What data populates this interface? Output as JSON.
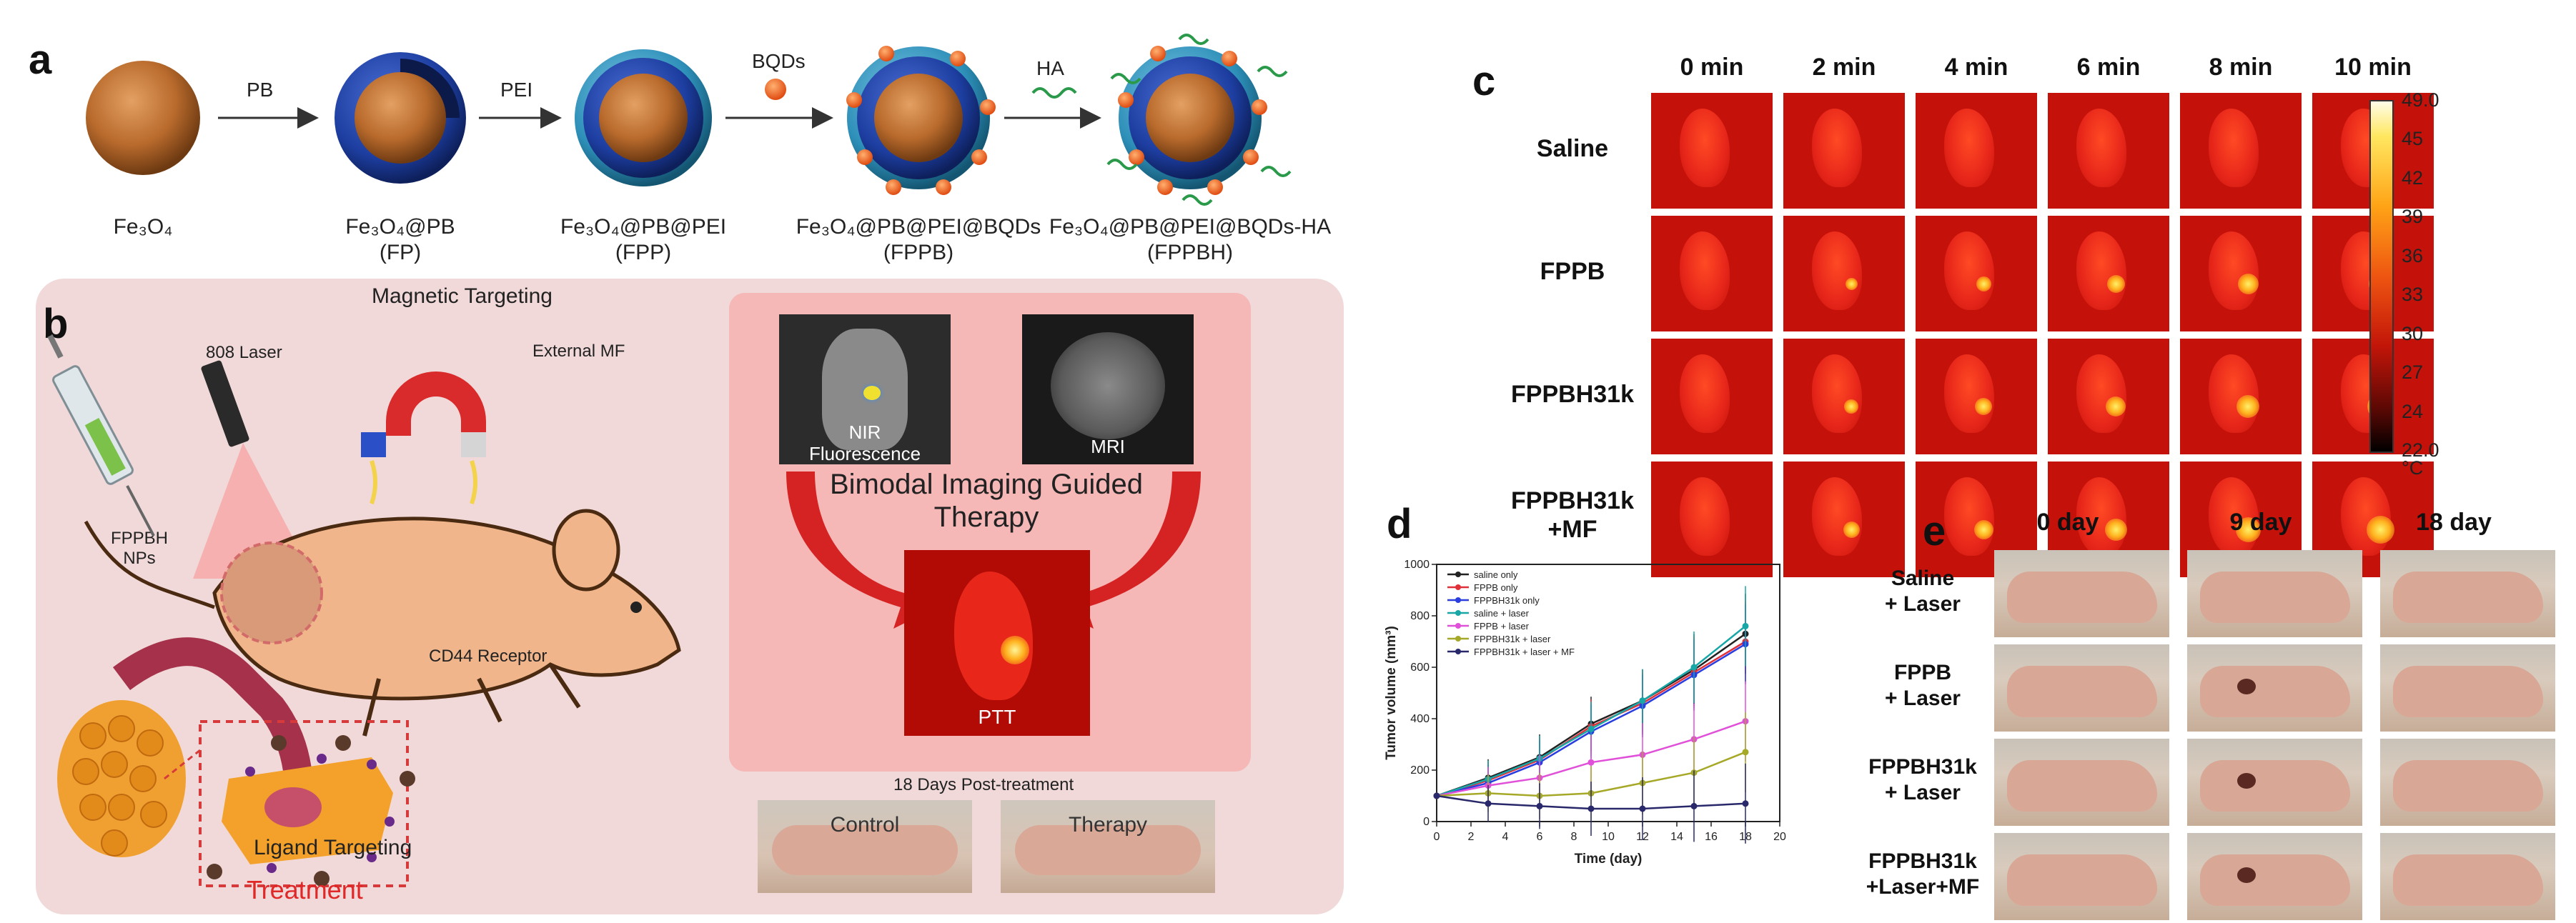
{
  "panel_a": {
    "label": "a",
    "steps": [
      {
        "formula": "Fe₃O₄",
        "abbrev": ""
      },
      {
        "formula": "Fe₃O₄@PB",
        "abbrev": "(FP)"
      },
      {
        "formula": "Fe₃O₄@PB@PEI",
        "abbrev": "(FPP)"
      },
      {
        "formula": "Fe₃O₄@PB@PEI@BQDs",
        "abbrev": "(FPPB)"
      },
      {
        "formula": "Fe₃O₄@PB@PEI@BQDs-HA",
        "abbrev": "(FPPBH)"
      }
    ],
    "arrows": [
      "PB",
      "PEI",
      "BQDs",
      "HA"
    ]
  },
  "panel_b": {
    "label": "b",
    "magnetic_targeting": "Magnetic Targeting",
    "laser": "808 Laser",
    "external_mf": "External MF",
    "nps": "FPPBH\nNPs",
    "nir": "NIR\nFluorescence",
    "mri": "MRI",
    "bimodal": "Bimodal Imaging Guided\nTherapy",
    "ptt": "PTT",
    "cd44": "CD44 Receptor",
    "ligand": "Ligand Targeting",
    "treatment": "Treatment",
    "post": "18 Days Post-treatment",
    "control": "Control",
    "therapy": "Therapy"
  },
  "panel_c": {
    "label": "c",
    "columns": [
      "0 min",
      "2 min",
      "4 min",
      "6 min",
      "8 min",
      "10 min"
    ],
    "rows": [
      "Saline",
      "FPPB",
      "FPPBH31k",
      "FPPBH31k\n+MF"
    ],
    "colorbar_ticks": [
      "49.0",
      "45",
      "42",
      "39",
      "36",
      "33",
      "30",
      "27",
      "24",
      "22.0"
    ],
    "colorbar_unit": "°C",
    "colors": {
      "cold": "#000000",
      "mid": "#e01a0a",
      "hot": "#fff7a0"
    }
  },
  "panel_d": {
    "label": "d",
    "chart_data": {
      "type": "line",
      "xlabel": "Time (day)",
      "ylabel": "Tumor volume (mm³)",
      "xlim": [
        0,
        20
      ],
      "ylim": [
        0,
        1000
      ],
      "xticks": [
        "0",
        "2",
        "4",
        "6",
        "8",
        "10",
        "12",
        "14",
        "16",
        "18",
        "20"
      ],
      "yticks": [
        "0",
        "200",
        "400",
        "600",
        "800",
        "1000"
      ],
      "x": [
        0,
        3,
        6,
        9,
        12,
        15,
        18
      ],
      "legend_position": "top-left",
      "series": [
        {
          "name": "saline only",
          "color": "#222222",
          "values": [
            100,
            170,
            250,
            380,
            470,
            590,
            730
          ]
        },
        {
          "name": "FPPB only",
          "color": "#e0303a",
          "values": [
            100,
            160,
            240,
            370,
            460,
            580,
            700
          ]
        },
        {
          "name": "FPPBH31k only",
          "color": "#2a3ee0",
          "values": [
            100,
            150,
            230,
            350,
            450,
            570,
            690
          ]
        },
        {
          "name": "saline + laser",
          "color": "#18a6a6",
          "values": [
            100,
            165,
            245,
            360,
            470,
            600,
            760
          ]
        },
        {
          "name": "FPPB + laser",
          "color": "#e050d8",
          "values": [
            100,
            140,
            170,
            230,
            260,
            320,
            390
          ]
        },
        {
          "name": "FPPBH31k + laser",
          "color": "#a6a828",
          "values": [
            100,
            110,
            100,
            110,
            150,
            190,
            270
          ]
        },
        {
          "name": "FPPBH31k + laser + MF",
          "color": "#28286a",
          "values": [
            100,
            70,
            60,
            50,
            50,
            60,
            70
          ]
        }
      ]
    }
  },
  "panel_e": {
    "label": "e",
    "columns": [
      "0 day",
      "9 day",
      "18 day"
    ],
    "rows": [
      "Saline\n+ Laser",
      "FPPB\n+ Laser",
      "FPPBH31k\n+ Laser",
      "FPPBH31k\n+Laser+MF"
    ]
  }
}
